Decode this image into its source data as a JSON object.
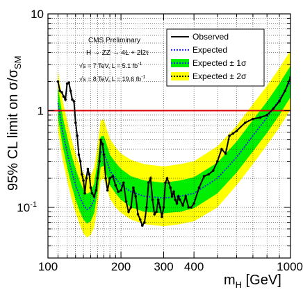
{
  "chart_data": {
    "type": "line",
    "x_scale": "log",
    "y_scale": "log",
    "xlim": [
      100,
      1000
    ],
    "ylim": [
      0.03,
      10
    ],
    "grid": true,
    "legend_position": "top-right",
    "ylabel_parts": {
      "prefix": "95% CL limit on σ/σ",
      "sub": "SM"
    },
    "xlabel_parts": {
      "prefix": "m",
      "sub": "H",
      "suffix": " [GeV]"
    },
    "x_ticks": [
      {
        "value": 100,
        "label": "100"
      },
      {
        "value": 200,
        "label": "200"
      },
      {
        "value": 300,
        "label": "300"
      },
      {
        "value": 400,
        "label": "400"
      },
      {
        "value": 1000,
        "label": "1000"
      }
    ],
    "y_ticks": [
      {
        "value": 10,
        "label_main": "10",
        "label_sup": ""
      },
      {
        "value": 1,
        "label_main": "1",
        "label_sup": ""
      },
      {
        "value": 0.1,
        "label_main": "10",
        "label_sup": "-1"
      }
    ],
    "reference_line": {
      "value": 1,
      "color": "#dd0000"
    },
    "annotation": {
      "title": "CMS Preliminary",
      "process": "H → ZZ → 4L + 2l2τ",
      "lumi7": "√s = 7 TeV, L = 5.1 fb",
      "lumi8": "√s = 8 TeV, L = 19.6 fb",
      "lumi_sup": "-1"
    },
    "legend": [
      {
        "label": "Observed",
        "kind": "line",
        "color": "#000000"
      },
      {
        "label": "Expected",
        "kind": "dotted",
        "color": "#2222ee"
      },
      {
        "label": "Expected ± 1σ",
        "kind": "band",
        "color": "#00ee00",
        "line": "#2222ee"
      },
      {
        "label": "Expected ± 2σ",
        "kind": "band",
        "color": "#ffff00",
        "line": "#2222ee"
      }
    ],
    "colors": {
      "band_2sigma": "#ffff00",
      "band_1sigma": "#00ee00",
      "expected": "#2222ee",
      "observed": "#000000"
    },
    "series": [
      {
        "name": "Expected",
        "x": [
          110,
          115,
          120,
          125,
          130,
          135,
          140,
          145,
          150,
          155,
          160,
          165,
          170,
          175,
          180,
          190,
          200,
          220,
          250,
          300,
          350,
          400,
          500,
          600,
          700,
          800,
          900,
          1000
        ],
        "y": [
          1.2,
          0.6,
          0.37,
          0.24,
          0.17,
          0.13,
          0.105,
          0.095,
          0.1,
          0.12,
          0.2,
          0.37,
          0.38,
          0.3,
          0.24,
          0.2,
          0.17,
          0.145,
          0.13,
          0.125,
          0.13,
          0.14,
          0.2,
          0.33,
          0.55,
          0.85,
          1.3,
          2.0
        ]
      },
      {
        "name": "Expected ± 1σ",
        "x": [
          110,
          115,
          120,
          125,
          130,
          135,
          140,
          145,
          150,
          155,
          160,
          165,
          170,
          175,
          180,
          190,
          200,
          220,
          250,
          300,
          350,
          400,
          500,
          600,
          700,
          800,
          900,
          1000
        ],
        "low": [
          0.85,
          0.43,
          0.26,
          0.17,
          0.12,
          0.092,
          0.075,
          0.068,
          0.072,
          0.087,
          0.14,
          0.26,
          0.27,
          0.21,
          0.17,
          0.14,
          0.12,
          0.1,
          0.09,
          0.087,
          0.09,
          0.098,
          0.14,
          0.23,
          0.38,
          0.59,
          0.9,
          1.38
        ],
        "high": [
          1.75,
          0.87,
          0.54,
          0.35,
          0.25,
          0.19,
          0.152,
          0.138,
          0.146,
          0.175,
          0.29,
          0.54,
          0.55,
          0.44,
          0.35,
          0.29,
          0.25,
          0.21,
          0.19,
          0.18,
          0.19,
          0.205,
          0.29,
          0.48,
          0.8,
          1.24,
          1.9,
          2.9
        ]
      },
      {
        "name": "Expected ± 2σ",
        "x": [
          110,
          115,
          120,
          125,
          130,
          135,
          140,
          145,
          150,
          155,
          160,
          165,
          170,
          175,
          180,
          190,
          200,
          220,
          250,
          300,
          350,
          400,
          500,
          600,
          700,
          800,
          900,
          1000
        ],
        "low": [
          0.62,
          0.31,
          0.19,
          0.124,
          0.088,
          0.067,
          0.054,
          0.049,
          0.052,
          0.062,
          0.1,
          0.19,
          0.2,
          0.155,
          0.124,
          0.1,
          0.088,
          0.075,
          0.067,
          0.064,
          0.067,
          0.072,
          0.1,
          0.17,
          0.28,
          0.44,
          0.67,
          1.02
        ],
        "high": [
          2.55,
          1.27,
          0.79,
          0.51,
          0.36,
          0.28,
          0.225,
          0.205,
          0.215,
          0.255,
          0.42,
          0.79,
          0.81,
          0.64,
          0.51,
          0.42,
          0.36,
          0.31,
          0.28,
          0.265,
          0.28,
          0.3,
          0.43,
          0.7,
          1.17,
          1.8,
          2.75,
          4.2
        ]
      },
      {
        "name": "Observed",
        "x": [
          110,
          112,
          114,
          116,
          118,
          120,
          122,
          124,
          126,
          128,
          130,
          132,
          134,
          136,
          138,
          140,
          142,
          144,
          146,
          148,
          150,
          152,
          155,
          158,
          160,
          163,
          165,
          168,
          170,
          173,
          176,
          180,
          185,
          190,
          195,
          200,
          205,
          210,
          215,
          220,
          225,
          230,
          235,
          240,
          245,
          250,
          255,
          260,
          265,
          270,
          275,
          280,
          285,
          290,
          295,
          300,
          305,
          310,
          315,
          320,
          325,
          330,
          335,
          340,
          345,
          350,
          360,
          370,
          380,
          390,
          400,
          420,
          440,
          460,
          480,
          500,
          520,
          540,
          560,
          580,
          600,
          650,
          700,
          750,
          800,
          850,
          900,
          950,
          1000
        ],
        "y": [
          2.0,
          1.6,
          1.55,
          1.4,
          1.3,
          1.9,
          1.95,
          1.6,
          1.3,
          1.25,
          0.75,
          0.55,
          0.35,
          0.3,
          0.22,
          0.19,
          0.14,
          0.2,
          0.25,
          0.22,
          0.16,
          0.14,
          0.13,
          0.15,
          0.2,
          0.3,
          0.5,
          0.45,
          0.35,
          0.2,
          0.15,
          0.2,
          0.21,
          0.17,
          0.145,
          0.15,
          0.18,
          0.115,
          0.09,
          0.1,
          0.16,
          0.13,
          0.085,
          0.075,
          0.065,
          0.07,
          0.1,
          0.18,
          0.2,
          0.12,
          0.085,
          0.09,
          0.12,
          0.1,
          0.08,
          0.1,
          0.18,
          0.2,
          0.18,
          0.16,
          0.13,
          0.145,
          0.12,
          0.11,
          0.13,
          0.12,
          0.105,
          0.13,
          0.1,
          0.1,
          0.11,
          0.16,
          0.21,
          0.22,
          0.24,
          0.3,
          0.4,
          0.36,
          0.55,
          0.58,
          0.62,
          0.75,
          0.82,
          0.85,
          0.9,
          1.05,
          1.25,
          1.6,
          2.2
        ]
      }
    ]
  }
}
